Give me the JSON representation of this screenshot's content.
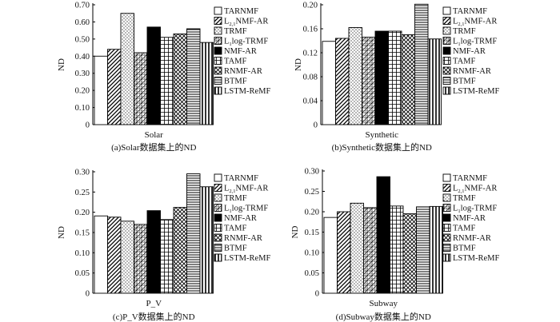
{
  "legend": [
    {
      "label": "TARNMF",
      "sub": "",
      "rest": "",
      "pattern": "white"
    },
    {
      "label": "L",
      "sub": "2,1",
      "rest": "NMF-AR",
      "pattern": "diag-back"
    },
    {
      "label": "TRMF",
      "sub": "",
      "rest": "",
      "pattern": "dots"
    },
    {
      "label": "L",
      "sub": "1",
      "rest": "log-TRMF",
      "pattern": "grid-diag"
    },
    {
      "label": "NMF-AR",
      "sub": "",
      "rest": "",
      "pattern": "black"
    },
    {
      "label": "TAMF",
      "sub": "",
      "rest": "",
      "pattern": "grid"
    },
    {
      "label": "RNMF-AR",
      "sub": "",
      "rest": "",
      "pattern": "cross-diag"
    },
    {
      "label": "BTMF",
      "sub": "",
      "rest": "",
      "pattern": "hlines"
    },
    {
      "label": "LSTM-ReMF",
      "sub": "",
      "rest": "",
      "pattern": "vbars"
    }
  ],
  "chart_data": [
    {
      "type": "bar",
      "series_names": [
        "TARNMF",
        "L2,1NMF-AR",
        "TRMF",
        "L1log-TRMF",
        "NMF-AR",
        "TAMF",
        "RNMF-AR",
        "BTMF",
        "LSTM-ReMF"
      ],
      "values": [
        0.4,
        0.44,
        0.65,
        0.42,
        0.57,
        0.51,
        0.53,
        0.56,
        0.48
      ],
      "ylim": [
        0,
        0.7
      ],
      "yticks": [
        "0",
        "0.10",
        "0.20",
        "0.30",
        "0.40",
        "0.50",
        "0.60",
        "0.70"
      ],
      "xlabel": "Solar",
      "ylabel": "ND",
      "caption": "(a)Solar数据集上的ND"
    },
    {
      "type": "bar",
      "series_names": [
        "TARNMF",
        "L2,1NMF-AR",
        "TRMF",
        "L1log-TRMF",
        "NMF-AR",
        "TAMF",
        "RNMF-AR",
        "BTMF",
        "LSTM-ReMF"
      ],
      "values": [
        0.139,
        0.144,
        0.162,
        0.146,
        0.156,
        0.156,
        0.15,
        0.201,
        0.143
      ],
      "ylim": [
        0,
        0.2
      ],
      "yticks": [
        "0",
        "0.04",
        "0.08",
        "0.12",
        "0.16",
        "0.20"
      ],
      "xlabel": "Synthetic",
      "ylabel": "ND",
      "caption": "(b)Synthetic数据集上的ND"
    },
    {
      "type": "bar",
      "series_names": [
        "TARNMF",
        "L2,1NMF-AR",
        "TRMF",
        "L1log-TRMF",
        "NMF-AR",
        "TAMF",
        "RNMF-AR",
        "BTMF",
        "LSTM-ReMF"
      ],
      "values": [
        0.191,
        0.188,
        0.178,
        0.17,
        0.204,
        0.182,
        0.212,
        0.295,
        0.263
      ],
      "ylim": [
        0,
        0.3
      ],
      "yticks": [
        "0",
        "0.05",
        "0.10",
        "0.15",
        "0.20",
        "0.25",
        "0.30"
      ],
      "xlabel": "P_V",
      "ylabel": "ND",
      "caption": "(c)P_V数据集上的ND"
    },
    {
      "type": "bar",
      "series_names": [
        "TARNMF",
        "L2,1NMF-AR",
        "TRMF",
        "L1log-TRMF",
        "NMF-AR",
        "TAMF",
        "RNMF-AR",
        "BTMF",
        "LSTM-ReMF"
      ],
      "values": [
        0.186,
        0.2,
        0.221,
        0.21,
        0.286,
        0.214,
        0.195,
        0.212,
        0.213
      ],
      "ylim": [
        0,
        0.3
      ],
      "yticks": [
        "0",
        "0.05",
        "0.10",
        "0.15",
        "0.20",
        "0.25",
        "0.30"
      ],
      "xlabel": "Subway",
      "ylabel": "ND",
      "caption": "(d)Subway数据集上的ND"
    }
  ]
}
